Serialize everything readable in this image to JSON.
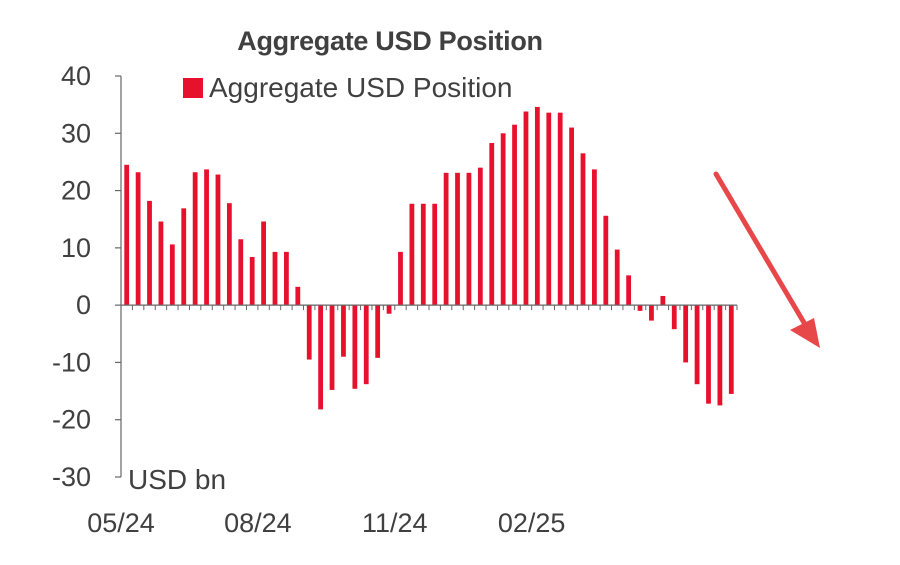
{
  "chart_data": {
    "type": "bar",
    "title": "Aggregate USD Position",
    "legend": {
      "entries": [
        "Aggregate USD Position"
      ],
      "position": "top"
    },
    "ylabel": "USD bn",
    "ylim": [
      -30,
      40
    ],
    "yticks": [
      40,
      30,
      20,
      10,
      0,
      -10,
      -20,
      -30
    ],
    "xtick_labels": [
      "05/24",
      "08/24",
      "11/24",
      "02/25"
    ],
    "xtick_bar_index": [
      0,
      12,
      24,
      36
    ],
    "grid": false,
    "series": [
      {
        "name": "Aggregate USD Position",
        "color": "#e8112d",
        "values": [
          24.5,
          23.2,
          18.2,
          14.6,
          10.6,
          16.9,
          23.2,
          23.7,
          22.8,
          17.8,
          11.5,
          8.4,
          14.6,
          9.3,
          9.3,
          3.2,
          -9.5,
          -18.2,
          -14.8,
          -9.0,
          -14.6,
          -13.8,
          -9.2,
          -1.5,
          9.3,
          17.7,
          17.7,
          17.7,
          23.1,
          23.1,
          23.1,
          24.0,
          28.3,
          30.0,
          31.5,
          33.8,
          34.6,
          33.6,
          33.6,
          31.0,
          26.5,
          23.7,
          15.6,
          9.7,
          5.2,
          -1.0,
          -2.7,
          1.6,
          -4.2,
          -10.0,
          -13.8,
          -17.2,
          -17.5,
          -15.5
        ]
      }
    ],
    "annotations": [
      {
        "type": "arrow",
        "direction": "down-right",
        "color": "#e8474a"
      }
    ]
  }
}
